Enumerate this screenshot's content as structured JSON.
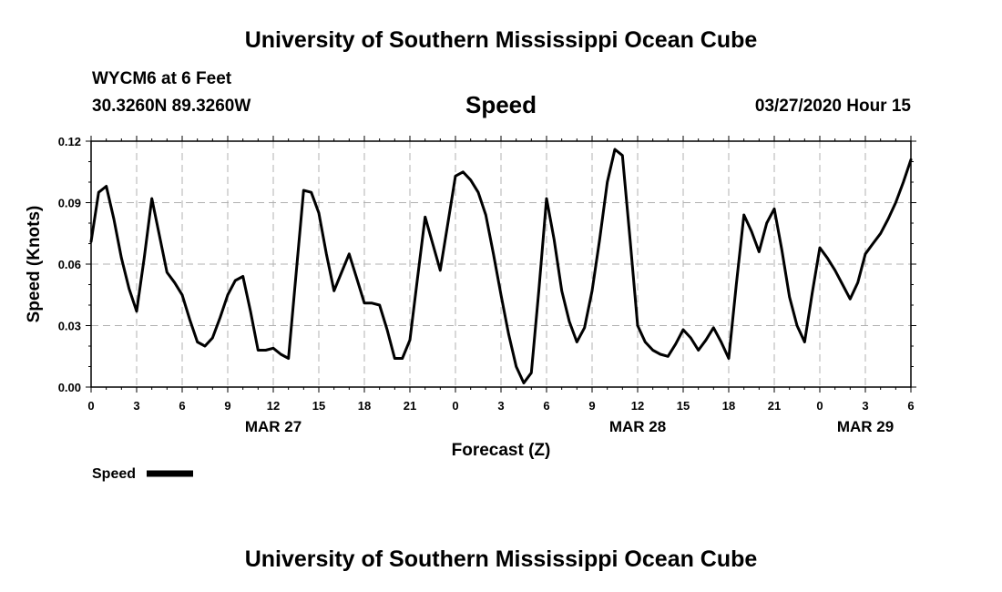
{
  "header": {
    "title": "University of Southern Mississippi Ocean Cube",
    "station": "WYCM6 at 6 Feet",
    "coordinates": "30.3260N 89.3260W",
    "valid_time": "03/27/2020 Hour 15"
  },
  "footer": {
    "title": "University of Southern Mississippi Ocean Cube"
  },
  "chart_data": {
    "type": "line",
    "title": "Speed",
    "xlabel": "Forecast (Z)",
    "ylabel": "Speed (Knots)",
    "x_unit": "hours from 00Z MAR 27",
    "xlim": [
      0,
      54
    ],
    "ylim": [
      0,
      0.12
    ],
    "y_ticks": [
      "0.00",
      "0.03",
      "0.06",
      "0.09",
      "0.12"
    ],
    "x_tick_labels": [
      "0",
      "3",
      "6",
      "9",
      "12",
      "15",
      "18",
      "21",
      "0",
      "3",
      "6",
      "9",
      "12",
      "15",
      "18",
      "21",
      "0",
      "3",
      "6"
    ],
    "date_labels": [
      {
        "text": "MAR 27",
        "hour": 12
      },
      {
        "text": "MAR 28",
        "hour": 36
      },
      {
        "text": "MAR 29",
        "hour": 51
      }
    ],
    "grid": true,
    "legend_position": "bottom-left",
    "series": [
      {
        "name": "Speed",
        "color": "#000000",
        "points": [
          [
            0,
            0.071
          ],
          [
            0.5,
            0.095
          ],
          [
            1,
            0.098
          ],
          [
            1.5,
            0.082
          ],
          [
            2,
            0.063
          ],
          [
            2.5,
            0.048
          ],
          [
            3,
            0.037
          ],
          [
            3.5,
            0.063
          ],
          [
            4,
            0.092
          ],
          [
            4.5,
            0.074
          ],
          [
            5,
            0.056
          ],
          [
            5.5,
            0.051
          ],
          [
            6,
            0.045
          ],
          [
            6.5,
            0.033
          ],
          [
            7,
            0.022
          ],
          [
            7.5,
            0.02
          ],
          [
            8,
            0.024
          ],
          [
            8.5,
            0.034
          ],
          [
            9,
            0.045
          ],
          [
            9.5,
            0.052
          ],
          [
            10,
            0.054
          ],
          [
            10.5,
            0.037
          ],
          [
            11,
            0.018
          ],
          [
            11.5,
            0.018
          ],
          [
            12,
            0.019
          ],
          [
            12.5,
            0.016
          ],
          [
            13,
            0.014
          ],
          [
            13.5,
            0.055
          ],
          [
            14,
            0.096
          ],
          [
            14.5,
            0.095
          ],
          [
            15,
            0.085
          ],
          [
            15.5,
            0.065
          ],
          [
            16,
            0.047
          ],
          [
            16.5,
            0.056
          ],
          [
            17,
            0.065
          ],
          [
            17.5,
            0.053
          ],
          [
            18,
            0.041
          ],
          [
            18.5,
            0.041
          ],
          [
            19,
            0.04
          ],
          [
            19.5,
            0.028
          ],
          [
            20,
            0.014
          ],
          [
            20.5,
            0.014
          ],
          [
            21,
            0.023
          ],
          [
            21.5,
            0.053
          ],
          [
            22,
            0.083
          ],
          [
            22.5,
            0.07
          ],
          [
            23,
            0.057
          ],
          [
            23.5,
            0.08
          ],
          [
            24,
            0.103
          ],
          [
            24.5,
            0.105
          ],
          [
            25,
            0.101
          ],
          [
            25.5,
            0.095
          ],
          [
            26,
            0.084
          ],
          [
            26.5,
            0.065
          ],
          [
            27,
            0.045
          ],
          [
            27.5,
            0.026
          ],
          [
            28,
            0.01
          ],
          [
            28.5,
            0.002
          ],
          [
            29,
            0.007
          ],
          [
            29.5,
            0.048
          ],
          [
            30,
            0.092
          ],
          [
            30.5,
            0.072
          ],
          [
            31,
            0.047
          ],
          [
            31.5,
            0.032
          ],
          [
            32,
            0.022
          ],
          [
            32.5,
            0.029
          ],
          [
            33,
            0.047
          ],
          [
            33.5,
            0.072
          ],
          [
            34,
            0.1
          ],
          [
            34.5,
            0.116
          ],
          [
            35,
            0.113
          ],
          [
            35.5,
            0.072
          ],
          [
            36,
            0.03
          ],
          [
            36.5,
            0.022
          ],
          [
            37,
            0.018
          ],
          [
            37.5,
            0.016
          ],
          [
            38,
            0.015
          ],
          [
            38.5,
            0.021
          ],
          [
            39,
            0.028
          ],
          [
            39.5,
            0.024
          ],
          [
            40,
            0.018
          ],
          [
            40.5,
            0.023
          ],
          [
            41,
            0.029
          ],
          [
            41.5,
            0.022
          ],
          [
            42,
            0.014
          ],
          [
            42.5,
            0.05
          ],
          [
            43,
            0.084
          ],
          [
            43.5,
            0.076
          ],
          [
            44,
            0.066
          ],
          [
            44.5,
            0.08
          ],
          [
            45,
            0.087
          ],
          [
            45.5,
            0.067
          ],
          [
            46,
            0.044
          ],
          [
            46.5,
            0.03
          ],
          [
            47,
            0.022
          ],
          [
            47.5,
            0.046
          ],
          [
            48,
            0.068
          ],
          [
            48.5,
            0.063
          ],
          [
            49,
            0.057
          ],
          [
            49.5,
            0.05
          ],
          [
            50,
            0.043
          ],
          [
            50.5,
            0.051
          ],
          [
            51,
            0.065
          ],
          [
            51.5,
            0.07
          ],
          [
            52,
            0.075
          ],
          [
            52.5,
            0.082
          ],
          [
            53,
            0.09
          ],
          [
            53.5,
            0.1
          ],
          [
            54,
            0.111
          ]
        ]
      }
    ]
  }
}
